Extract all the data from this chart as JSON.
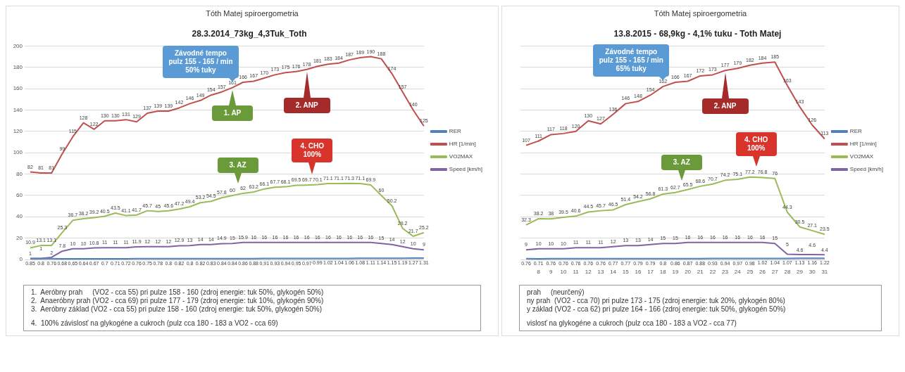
{
  "chart_data": [
    {
      "type": "line",
      "title": "Tóth Matej spiroergometria",
      "subtitle": "28.3.2014_73kg_4,3Tuk_Toth",
      "categories": [
        null,
        null,
        null,
        null,
        null,
        null,
        null,
        null,
        null,
        null,
        null,
        null,
        null,
        null,
        null,
        null,
        null,
        null,
        null,
        null,
        null,
        null,
        null,
        null,
        null,
        null,
        null,
        null,
        null,
        null,
        null,
        null,
        null,
        null,
        null,
        null,
        null,
        null
      ],
      "series": [
        {
          "name": "RER",
          "color": "#4f81bd",
          "values": [
            0.85,
            0.8,
            0.76,
            0.68,
            0.65,
            0.64,
            0.67,
            0.7,
            0.71,
            0.72,
            0.76,
            0.75,
            0.78,
            0.8,
            0.82,
            0.8,
            0.82,
            0.83,
            0.84,
            0.84,
            0.86,
            0.88,
            0.91,
            0.93,
            0.94,
            0.95,
            0.97,
            0.99,
            1.02,
            1.04,
            1.06,
            1.08,
            1.11,
            1.14,
            1.15,
            1.19,
            1.27,
            1.31
          ]
        },
        {
          "name": "HR [1/min]",
          "color": "#c0504d",
          "values": [
            82,
            81,
            81,
            99,
            115,
            128,
            122,
            130,
            130,
            131,
            129,
            137,
            139,
            139,
            142,
            146,
            149,
            154,
            157,
            161,
            166,
            167,
            170,
            173,
            175,
            176,
            178,
            181,
            183,
            184,
            187,
            189,
            190,
            188,
            174,
            157,
            140,
            125
          ]
        },
        {
          "name": "VO2MAX",
          "color": "#9bbb59",
          "values": [
            10.9,
            13.1,
            13.1,
            25.3,
            36.7,
            38.2,
            39.2,
            40.5,
            43.5,
            41.1,
            41.7,
            45.7,
            45,
            45.6,
            47.2,
            49.4,
            53.2,
            54.5,
            57.8,
            60,
            62,
            63.2,
            66.1,
            67.7,
            68.1,
            69.5,
            69.7,
            70.1,
            71.1,
            71.1,
            71.3,
            71.1,
            69.9,
            60,
            50.2,
            29.2,
            21.7,
            25.2
          ]
        },
        {
          "name": "Speed [km/h]",
          "color": "#8064a2",
          "values": [
            1,
            1,
            2,
            7.8,
            10,
            10,
            10.8,
            11,
            11,
            11,
            11.9,
            12,
            12,
            12,
            12.9,
            13,
            14,
            14,
            14.9,
            15,
            15.9,
            16,
            16,
            16,
            16,
            16,
            16,
            16,
            16,
            16,
            16,
            16,
            16,
            15,
            14,
            12,
            10,
            9
          ]
        }
      ],
      "ylim": [
        0,
        200
      ],
      "yticks": [
        0,
        20,
        40,
        60,
        80,
        100,
        120,
        140,
        160,
        180,
        200
      ],
      "grid": "y",
      "legend": "right",
      "data_labels": true,
      "tick_labels": "y",
      "annotations": [
        "Závodné tempo\npulz 155 - 165 / min\n50% tuky",
        "1. AP",
        "3. AZ",
        "2. ANP",
        "4. CHO\n100%",
        "1.  Aeróbny prah     (VO2 - cca 55) pri pulze 158 - 160 (zdroj energie: tuk 50%, glykogén 50%)",
        "2.  Anaeróbny prah (VO2 - cca 69) pri pulze 177 - 179 (zdroj energie: tuk 10%, glykogén 90%)",
        "3.  Aeróbny základ (VO2 - cca 55) pri pulze 158 - 160 (zdroj energie: tuk 50%, glykogén 50%)",
        "4.  100% závislosť na glykogéne a cukroch (pulz cca 180 - 183 a VO2 - cca 69)"
      ]
    },
    {
      "type": "line",
      "title": "Tóth Matej spiroergometria",
      "subtitle": "13.8.2015 - 68,9kg - 4,1% tuku - Toth Matej",
      "categories": [
        null,
        "8",
        "9",
        "10",
        "11",
        "12",
        "13",
        "14",
        "15",
        "16",
        "17",
        "18",
        "19",
        "20",
        "21",
        "22",
        "23",
        "24",
        "25",
        "26",
        "27",
        "28",
        "29",
        "30",
        "31"
      ],
      "series": [
        {
          "name": "RER",
          "color": "#4f81bd",
          "values": [
            0.76,
            0.71,
            0.76,
            0.76,
            0.76,
            0.76,
            0.76,
            0.77,
            0.77,
            0.79,
            0.79,
            0.8,
            0.86,
            0.87,
            0.88,
            0.93,
            0.94,
            0.97,
            0.98,
            1.02,
            1.04,
            1.07,
            1.13,
            1.16,
            1.22
          ]
        },
        {
          "name": "HR [1/min]",
          "color": "#c0504d",
          "values": [
            107,
            111,
            117,
            118,
            120,
            130,
            127,
            136,
            146,
            148,
            154,
            162,
            166,
            167,
            172,
            173,
            177,
            179,
            182,
            184,
            185,
            163,
            143,
            126,
            113
          ]
        },
        {
          "name": "VO2MAX",
          "color": "#9bbb59",
          "values": [
            32.3,
            38.2,
            38,
            39.5,
            40.6,
            44.5,
            45.7,
            46.5,
            51.4,
            54.2,
            56.8,
            61.3,
            62.7,
            65.5,
            68.6,
            70.7,
            74.2,
            75.1,
            77.2,
            76.8,
            76,
            44.3,
            30.5,
            27.1,
            23.5
          ]
        },
        {
          "name": "Speed [km/h]",
          "color": "#8064a2",
          "values": [
            9,
            10,
            10,
            10,
            11,
            11,
            11,
            12,
            13,
            13,
            14,
            15,
            15,
            16,
            16,
            16,
            16,
            16,
            16,
            16,
            15,
            5,
            4.6,
            4.6,
            4.4
          ]
        }
      ],
      "ylim": [
        0,
        200
      ],
      "yticks": [
        0,
        20,
        40,
        60,
        80,
        100,
        120,
        140,
        160,
        180,
        200
      ],
      "grid": "y",
      "legend": "right",
      "data_labels": true,
      "tick_labels": "x",
      "annotations": [
        "Závodné tempo\npulz 155 - 165 / min\n65% tuky",
        "3. AZ",
        "2. ANP",
        "4. CHO\n100%",
        "prah     (neurčený)",
        "ny prah  (VO2 - cca 70) pri pulze 173 - 175 (zdroj energie: tuk 20%, glykogén 80%)",
        "y základ (VO2 - cca 62) pri pulze 164 - 166 (zdroj energie: tuk 50%, glykogén 50%)",
        "vislosť na glykogéne a cukroch (pulz cca 180 - 183 a VO2 - cca 77)"
      ]
    }
  ]
}
